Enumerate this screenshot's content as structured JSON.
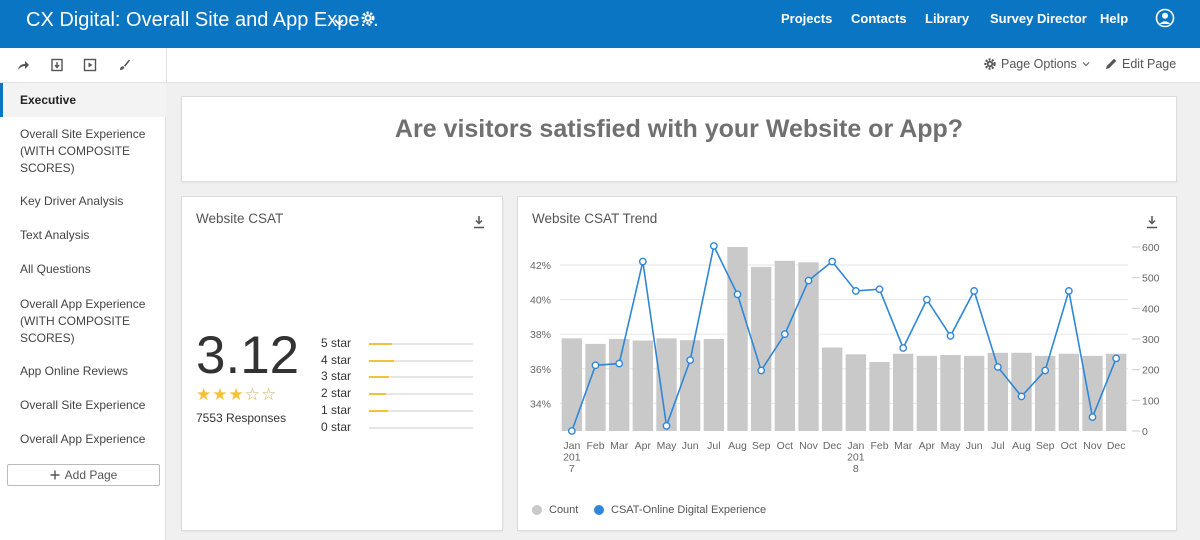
{
  "header": {
    "title": "CX Digital: Overall Site and App Expe…",
    "nav": [
      "Projects",
      "Contacts",
      "Library",
      "Survey Director",
      "Help"
    ]
  },
  "toolbar": {
    "page_options": "Page Options",
    "edit_page": "Edit Page"
  },
  "sidebar": {
    "items": [
      {
        "label": "Executive",
        "active": true
      },
      {
        "label": "Overall Site Experience (WITH COMPOSITE SCORES)"
      },
      {
        "label": "Key Driver Analysis"
      },
      {
        "label": "Text Analysis"
      },
      {
        "label": "All Questions"
      },
      {
        "label": "Overall App Experience (WITH COMPOSITE SCORES)"
      },
      {
        "label": "App Online Reviews"
      },
      {
        "label": "Overall Site Experience"
      },
      {
        "label": "Overall App Experience"
      }
    ],
    "add_page": "Add Page"
  },
  "banner": {
    "title": "Are visitors satisfied with your Website or App?"
  },
  "csat_card": {
    "title": "Website CSAT",
    "score": "3.12",
    "star_rating": 3,
    "responses": "7553 Responses",
    "distribution": [
      {
        "label": "5 star",
        "share": 0.22
      },
      {
        "label": "4 star",
        "share": 0.24
      },
      {
        "label": "3 star",
        "share": 0.19
      },
      {
        "label": "2 star",
        "share": 0.16
      },
      {
        "label": "1 star",
        "share": 0.18
      },
      {
        "label": "0 star",
        "share": 0
      }
    ]
  },
  "trend_card": {
    "title": "Website CSAT Trend",
    "legend": {
      "count": "Count",
      "csat": "CSAT-Online Digital Experience"
    }
  },
  "colors": {
    "brand": "#0a76c3",
    "bar": "#c9c9c9",
    "line": "#2f87d6",
    "star": "#f3c13a"
  },
  "chart_data": {
    "type": "bar",
    "categories": [
      "Jan 2017",
      "Feb",
      "Mar",
      "Apr",
      "May",
      "Jun",
      "Jul",
      "Aug",
      "Sep",
      "Oct",
      "Nov",
      "Dec",
      "Jan 2018",
      "Feb",
      "Mar",
      "Apr",
      "May",
      "Jun",
      "Jul",
      "Aug",
      "Sep",
      "Oct",
      "Nov",
      "Dec"
    ],
    "x_tick_labels": [
      [
        "Jan",
        "201",
        "7"
      ],
      [
        "Feb"
      ],
      [
        "Mar"
      ],
      [
        "Apr"
      ],
      [
        "May"
      ],
      [
        "Jun"
      ],
      [
        "Jul"
      ],
      [
        "Aug"
      ],
      [
        "Sep"
      ],
      [
        "Oct"
      ],
      [
        "Nov"
      ],
      [
        "Dec"
      ],
      [
        "Jan",
        "201",
        "8"
      ],
      [
        "Feb"
      ],
      [
        "Mar"
      ],
      [
        "Apr"
      ],
      [
        "May"
      ],
      [
        "Jun"
      ],
      [
        "Jul"
      ],
      [
        "Aug"
      ],
      [
        "Sep"
      ],
      [
        "Oct"
      ],
      [
        "Nov"
      ],
      [
        "Dec"
      ]
    ],
    "series": [
      {
        "name": "Count",
        "type": "bar",
        "axis": "right",
        "values": [
          302,
          284,
          300,
          295,
          302,
          296,
          300,
          600,
          535,
          555,
          550,
          272,
          250,
          225,
          252,
          245,
          248,
          245,
          255,
          255,
          245,
          252,
          245,
          252
        ]
      },
      {
        "name": "CSAT-Online Digital Experience",
        "type": "line",
        "axis": "left",
        "values": [
          32.4,
          36.2,
          36.3,
          42.2,
          32.7,
          36.5,
          43.1,
          40.3,
          35.9,
          38.0,
          41.1,
          42.2,
          40.5,
          40.6,
          37.2,
          40.0,
          37.9,
          40.5,
          36.1,
          34.4,
          35.9,
          40.5,
          33.2,
          36.6
        ]
      }
    ],
    "y_left": {
      "ticks": [
        "34%",
        "36%",
        "38%",
        "40%",
        "42%"
      ],
      "range": [
        32.4,
        43.1
      ]
    },
    "y_right": {
      "ticks": [
        "0",
        "100",
        "200",
        "300",
        "400",
        "500",
        "600"
      ],
      "range": [
        0,
        600
      ]
    },
    "grid": true,
    "legend_position": "bottom-left"
  }
}
